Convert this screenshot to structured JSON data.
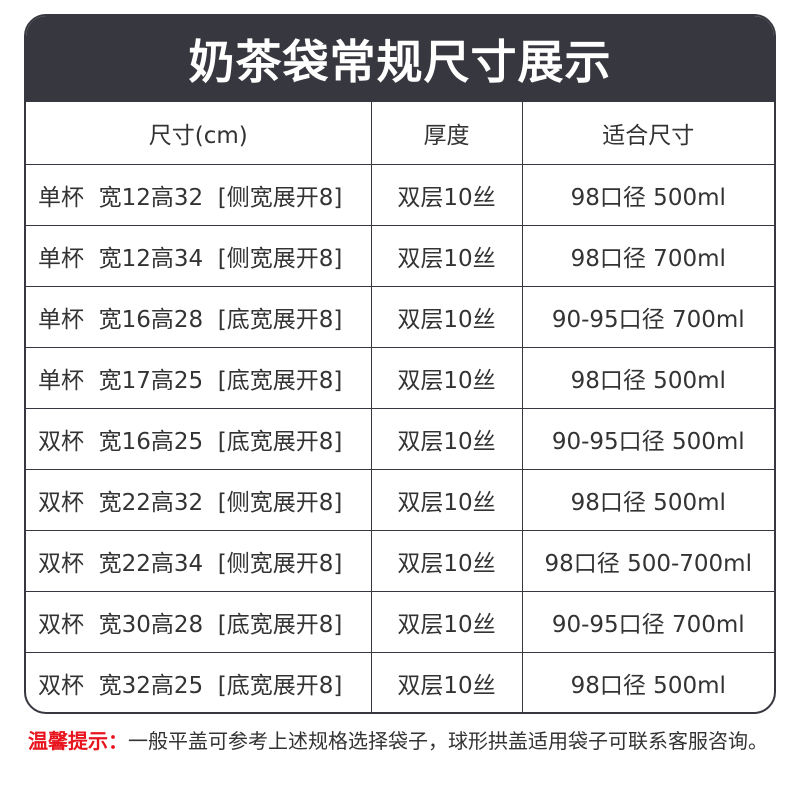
{
  "title": "奶茶袋常规尺寸展示",
  "columns": [
    "尺寸(cm)",
    "厚度",
    "适合尺寸"
  ],
  "rows": [
    [
      "单杯  宽12高32  [侧宽展开8]",
      "双层10丝",
      "98口径 500ml"
    ],
    [
      "单杯  宽12高34  [侧宽展开8]",
      "双层10丝",
      "98口径 700ml"
    ],
    [
      "单杯  宽16高28  [底宽展开8]",
      "双层10丝",
      "90-95口径 700ml"
    ],
    [
      "单杯  宽17高25  [底宽展开8]",
      "双层10丝",
      "98口径 500ml"
    ],
    [
      "双杯  宽16高25  [底宽展开8]",
      "双层10丝",
      "90-95口径 500ml"
    ],
    [
      "双杯  宽22高32  [侧宽展开8]",
      "双层10丝",
      "98口径 500ml"
    ],
    [
      "双杯  宽22高34  [侧宽展开8]",
      "双层10丝",
      "98口径 500-700ml"
    ],
    [
      "双杯  宽30高28  [底宽展开8]",
      "双层10丝",
      "90-95口径 700ml"
    ],
    [
      "双杯  宽32高25  [底宽展开8]",
      "双层10丝",
      "98口径 500ml"
    ]
  ],
  "tip": {
    "label": "温馨提示：",
    "text": "一般平盖可参考上述规格选择袋子，球形拱盖适用袋子可联系客服咨询。"
  },
  "colors": {
    "header": "#37373f",
    "tip_label": "#e8141e"
  }
}
